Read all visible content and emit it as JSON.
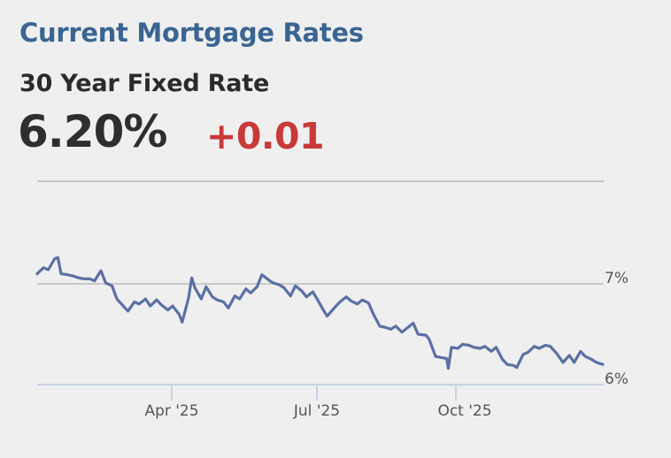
{
  "header": {
    "title": "Current Mortgage Rates",
    "product": "30 Year Fixed Rate",
    "current_rate": "6.20%",
    "change": "+0.01"
  },
  "colors": {
    "title": "#3a6592",
    "change_positive": "#c8393a",
    "line": "#5b70a4",
    "gridline": "#c8c8c8",
    "axis": "#c9d3e3"
  },
  "chart_data": {
    "type": "line",
    "title": "30 Year Fixed Rate",
    "xlabel": "",
    "ylabel": "",
    "y_tick_labels": [
      "7%",
      "6%"
    ],
    "y_ticks": [
      7,
      6
    ],
    "ylim": [
      6.0,
      8.0
    ],
    "x_tick_labels": [
      "Apr '25",
      "Jul '25",
      "Oct '25"
    ],
    "x_range": [
      "Jan 2025",
      "Dec 2025"
    ],
    "grid": true,
    "legend": null,
    "series": [
      {
        "name": "30 Year Fixed Rate",
        "x": [
          "2025-01-02",
          "2025-01-06",
          "2025-01-09",
          "2025-01-13",
          "2025-01-15",
          "2025-01-17",
          "2025-01-21",
          "2025-01-24",
          "2025-01-28",
          "2025-01-31",
          "2025-02-04",
          "2025-02-07",
          "2025-02-11",
          "2025-02-14",
          "2025-02-18",
          "2025-02-21",
          "2025-02-25",
          "2025-02-28",
          "2025-03-04",
          "2025-03-07",
          "2025-03-11",
          "2025-03-14",
          "2025-03-18",
          "2025-03-21",
          "2025-03-25",
          "2025-03-28",
          "2025-04-01",
          "2025-04-03",
          "2025-04-07",
          "2025-04-09",
          "2025-04-11",
          "2025-04-15",
          "2025-04-18",
          "2025-04-22",
          "2025-04-25",
          "2025-04-29",
          "2025-05-02",
          "2025-05-06",
          "2025-05-09",
          "2025-05-13",
          "2025-05-16",
          "2025-05-20",
          "2025-05-23",
          "2025-05-28",
          "2025-05-30",
          "2025-06-03",
          "2025-06-06",
          "2025-06-10",
          "2025-06-13",
          "2025-06-17",
          "2025-06-20",
          "2025-06-24",
          "2025-06-27",
          "2025-07-01",
          "2025-07-03",
          "2025-07-08",
          "2025-07-11",
          "2025-07-15",
          "2025-07-18",
          "2025-07-22",
          "2025-07-25",
          "2025-07-29",
          "2025-08-01",
          "2025-08-05",
          "2025-08-08",
          "2025-08-12",
          "2025-08-15",
          "2025-08-19",
          "2025-08-22",
          "2025-08-26",
          "2025-08-29",
          "2025-09-03",
          "2025-09-05",
          "2025-09-09",
          "2025-09-12",
          "2025-09-16",
          "2025-09-17",
          "2025-09-19",
          "2025-09-23",
          "2025-09-26",
          "2025-09-30",
          "2025-10-03",
          "2025-10-07",
          "2025-10-10",
          "2025-10-14",
          "2025-10-17",
          "2025-10-21",
          "2025-10-24",
          "2025-10-28",
          "2025-10-30",
          "2025-11-03",
          "2025-11-06",
          "2025-11-10",
          "2025-11-13",
          "2025-11-17",
          "2025-11-20",
          "2025-11-24",
          "2025-11-28",
          "2025-12-02",
          "2025-12-05",
          "2025-12-09",
          "2025-12-12",
          "2025-12-16",
          "2025-12-19",
          "2025-12-23"
        ],
        "values": [
          7.1,
          7.16,
          7.14,
          7.25,
          7.26,
          7.1,
          7.09,
          7.08,
          7.06,
          7.05,
          7.05,
          7.03,
          7.13,
          7.01,
          6.98,
          6.85,
          6.78,
          6.73,
          6.82,
          6.8,
          6.85,
          6.78,
          6.84,
          6.79,
          6.74,
          6.78,
          6.7,
          6.62,
          6.86,
          7.06,
          6.96,
          6.85,
          6.97,
          6.87,
          6.84,
          6.82,
          6.76,
          6.88,
          6.85,
          6.95,
          6.91,
          6.97,
          7.09,
          7.03,
          7.01,
          6.99,
          6.96,
          6.88,
          6.98,
          6.93,
          6.87,
          6.92,
          6.84,
          6.73,
          6.68,
          6.77,
          6.82,
          6.87,
          6.83,
          6.8,
          6.84,
          6.81,
          6.7,
          6.58,
          6.57,
          6.55,
          6.58,
          6.52,
          6.56,
          6.61,
          6.5,
          6.49,
          6.45,
          6.28,
          6.27,
          6.26,
          6.16,
          6.37,
          6.36,
          6.4,
          6.39,
          6.37,
          6.36,
          6.38,
          6.33,
          6.37,
          6.25,
          6.2,
          6.19,
          6.17,
          6.3,
          6.32,
          6.38,
          6.36,
          6.39,
          6.38,
          6.31,
          6.22,
          6.29,
          6.22,
          6.33,
          6.28,
          6.25,
          6.22,
          6.2
        ]
      }
    ]
  }
}
